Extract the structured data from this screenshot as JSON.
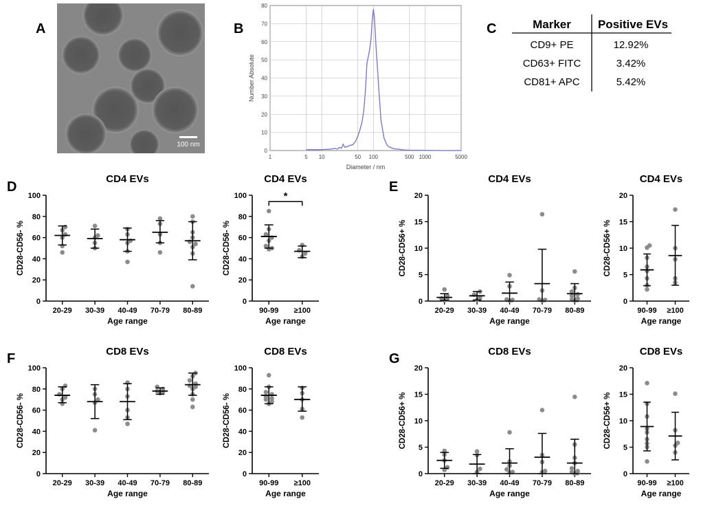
{
  "colors": {
    "axis": "#000000",
    "point": "#8c8c8c",
    "curve": "#7b7bc4",
    "grid": "#b8b8b8",
    "em_dark": "#4a4a4a",
    "em_mid": "#8a8a8a"
  },
  "panel_labels": {
    "a": "A",
    "b": "B",
    "c": "C",
    "d": "D",
    "e": "E",
    "f": "F",
    "g": "G"
  },
  "panel_a": {
    "scale_bar_label": "100 nm"
  },
  "panel_c": {
    "headers": [
      "Marker",
      "Positive EVs"
    ],
    "rows": [
      {
        "marker": "CD9+ PE",
        "value": "12.92%"
      },
      {
        "marker": "CD63+ FITC",
        "value": "3.42%"
      },
      {
        "marker": "CD81+ APC",
        "value": "5.42%"
      }
    ]
  },
  "chart_data": [
    {
      "id": "B",
      "type": "line",
      "xlabel": "Diameter / nm",
      "ylabel": "Number Absolute",
      "xscale": "log",
      "xlim": [
        1,
        5000
      ],
      "ylim": [
        0,
        80
      ],
      "x_ticks": [
        {
          "v": 1,
          "label": "1"
        },
        {
          "v": 5,
          "label": "5"
        },
        {
          "v": 10,
          "label": "10"
        },
        {
          "v": 50,
          "label": "50"
        },
        {
          "v": 100,
          "label": "100"
        },
        {
          "v": 500,
          "label": "500"
        },
        {
          "v": 1000,
          "label": "1000"
        },
        {
          "v": 5000,
          "label": "5000"
        }
      ],
      "y_ticks": [
        0,
        10,
        20,
        30,
        40,
        50,
        60,
        70,
        80
      ],
      "grid": true,
      "x": [
        5,
        10,
        15,
        18,
        20,
        22,
        24,
        26,
        28,
        30,
        35,
        40,
        45,
        50,
        55,
        60,
        65,
        70,
        75,
        80,
        85,
        90,
        95,
        100,
        105,
        110,
        115,
        120,
        130,
        140,
        160,
        180,
        200,
        250,
        300,
        400,
        500,
        1000,
        2000,
        5000
      ],
      "y": [
        0.5,
        0.5,
        0.8,
        1.2,
        0.8,
        1.8,
        1.2,
        3.5,
        1.8,
        2.0,
        2.8,
        3.2,
        5.0,
        8.0,
        11.5,
        15.5,
        22.0,
        33.0,
        48.0,
        52.0,
        56.0,
        62.0,
        72.0,
        78.0,
        73.0,
        62.0,
        53.0,
        45.0,
        30.0,
        17.0,
        7.0,
        3.5,
        2.0,
        1.0,
        0.8,
        0.3,
        0.2,
        0.1,
        0.05,
        0.0
      ]
    },
    {
      "id": "D-left",
      "type": "scatter",
      "title": "CD4 EVs",
      "xlabel": "Age range",
      "ylabel": "CD28-CD56- %",
      "ylim": [
        0,
        100
      ],
      "y_ticks": [
        0,
        20,
        40,
        60,
        80,
        100
      ],
      "categories": [
        "20-29",
        "30-39",
        "40-49",
        "70-79",
        "80-89"
      ],
      "groups": [
        {
          "points": [
            63,
            70,
            60,
            52,
            46,
            67
          ],
          "mean": 62,
          "sd_low": 53,
          "sd_high": 71
        },
        {
          "points": [
            71,
            62,
            55,
            60,
            50
          ],
          "mean": 59,
          "sd_low": 50,
          "sd_high": 68
        },
        {
          "points": [
            68,
            63,
            57,
            55,
            47,
            37
          ],
          "mean": 58,
          "sd_low": 47,
          "sd_high": 69
        },
        {
          "points": [
            78,
            73,
            63,
            55,
            46
          ],
          "mean": 65,
          "sd_low": 55,
          "sd_high": 76
        },
        {
          "points": [
            80,
            75,
            65,
            60,
            56,
            54,
            51,
            45,
            14
          ],
          "mean": 57,
          "sd_low": 39,
          "sd_high": 75
        }
      ]
    },
    {
      "id": "D-right",
      "type": "scatter",
      "title": "CD4 EVs",
      "xlabel": "Age range",
      "ylabel": "CD28-CD56- %",
      "ylim": [
        0,
        100
      ],
      "y_ticks": [
        0,
        20,
        40,
        60,
        80,
        100
      ],
      "categories": [
        "90-99",
        "≥100"
      ],
      "significance": "*",
      "groups": [
        {
          "points": [
            85,
            68,
            63,
            60,
            57,
            52,
            50,
            49
          ],
          "mean": 61,
          "sd_low": 50,
          "sd_high": 72
        },
        {
          "points": [
            53,
            48,
            45,
            42
          ],
          "mean": 47,
          "sd_low": 41,
          "sd_high": 52
        }
      ]
    },
    {
      "id": "E-left",
      "type": "scatter",
      "title": "CD4 EVs",
      "xlabel": "Age range",
      "ylabel": "CD28-CD56+ %",
      "ylim": [
        0,
        20
      ],
      "y_ticks": [
        0,
        5,
        10,
        15,
        20
      ],
      "categories": [
        "20-29",
        "30-39",
        "40-49",
        "70-79",
        "80-89"
      ],
      "groups": [
        {
          "points": [
            2.2,
            1.0,
            0.5,
            0.3,
            0.1
          ],
          "mean": 0.7,
          "sd_low": 0.1,
          "sd_high": 1.4
        },
        {
          "points": [
            1.8,
            1.2,
            0.6,
            0.2
          ],
          "mean": 1.0,
          "sd_low": 0.2,
          "sd_high": 1.8
        },
        {
          "points": [
            4.9,
            2.8,
            0.3,
            0.2,
            0.1
          ],
          "mean": 1.5,
          "sd_low": 0.0,
          "sd_high": 3.6
        },
        {
          "points": [
            16.4,
            2.0,
            0.3,
            0.2,
            0.1
          ],
          "mean": 3.3,
          "sd_low": 0.0,
          "sd_high": 9.8
        },
        {
          "points": [
            5.6,
            2.5,
            1.8,
            1.3,
            1.0,
            0.5,
            0.3,
            0.2,
            0.1
          ],
          "mean": 1.4,
          "sd_low": 0.0,
          "sd_high": 3.3
        }
      ]
    },
    {
      "id": "E-right",
      "type": "scatter",
      "title": "CD4 EVs",
      "xlabel": "Age range",
      "ylabel": "CD28-CD56+ %",
      "ylim": [
        0,
        20
      ],
      "y_ticks": [
        0,
        5,
        10,
        15,
        20
      ],
      "categories": [
        "90-99",
        "≥100"
      ],
      "groups": [
        {
          "points": [
            10.5,
            10.1,
            8.2,
            6.5,
            5.7,
            4.3,
            3.0,
            2.2
          ],
          "mean": 5.9,
          "sd_low": 2.9,
          "sd_high": 8.9
        },
        {
          "points": [
            17.3,
            10.0,
            7.9,
            4.3,
            3.5
          ],
          "mean": 8.6,
          "sd_low": 3.0,
          "sd_high": 14.3
        }
      ]
    },
    {
      "id": "F-left",
      "type": "scatter",
      "title": "CD8 EVs",
      "xlabel": "Age range",
      "ylabel": "CD28-CD56- %",
      "ylim": [
        0,
        100
      ],
      "y_ticks": [
        0,
        20,
        40,
        60,
        80,
        100
      ],
      "categories": [
        "20-29",
        "30-39",
        "40-49",
        "70-79",
        "80-89"
      ],
      "groups": [
        {
          "points": [
            83,
            80,
            75,
            72,
            70,
            66
          ],
          "mean": 74,
          "sd_low": 67,
          "sd_high": 82
        },
        {
          "points": [
            80,
            75,
            70,
            67,
            41
          ],
          "mean": 68,
          "sd_low": 52,
          "sd_high": 84
        },
        {
          "points": [
            86,
            80,
            73,
            60,
            53,
            47
          ],
          "mean": 68,
          "sd_low": 51,
          "sd_high": 85
        },
        {
          "points": [
            82,
            80,
            78,
            77,
            76
          ],
          "mean": 78,
          "sd_low": 75,
          "sd_high": 81
        },
        {
          "points": [
            95,
            92,
            88,
            85,
            83,
            82,
            80,
            75,
            70,
            63
          ],
          "mean": 84,
          "sd_low": 74,
          "sd_high": 95
        }
      ]
    },
    {
      "id": "F-right",
      "type": "scatter",
      "title": "CD8 EVs",
      "xlabel": "Age range",
      "ylabel": "CD28-CD56- %",
      "ylim": [
        0,
        100
      ],
      "y_ticks": [
        0,
        20,
        40,
        60,
        80,
        100
      ],
      "categories": [
        "90-99",
        "≥100"
      ],
      "groups": [
        {
          "points": [
            93,
            82,
            77,
            75,
            73,
            71,
            70,
            68,
            66
          ],
          "mean": 74,
          "sd_low": 66,
          "sd_high": 82
        },
        {
          "points": [
            81,
            76,
            70,
            61,
            53
          ],
          "mean": 70,
          "sd_low": 59,
          "sd_high": 82
        }
      ]
    },
    {
      "id": "G-left",
      "type": "scatter",
      "title": "CD8 EVs",
      "xlabel": "Age range",
      "ylabel": "CD28-CD56+ %",
      "ylim": [
        0,
        20
      ],
      "y_ticks": [
        0,
        5,
        10,
        15,
        20
      ],
      "categories": [
        "20-29",
        "30-39",
        "40-49",
        "70-79",
        "80-89"
      ],
      "groups": [
        {
          "points": [
            4.3,
            3.6,
            2.5,
            1.2,
            0.7
          ],
          "mean": 2.5,
          "sd_low": 1.0,
          "sd_high": 4.0
        },
        {
          "points": [
            4.2,
            3.5,
            0.9,
            0.3
          ],
          "mean": 1.8,
          "sd_low": 0.0,
          "sd_high": 3.6
        },
        {
          "points": [
            7.8,
            2.3,
            1.5,
            0.8,
            0.3,
            0.2
          ],
          "mean": 2.0,
          "sd_low": 0.0,
          "sd_high": 4.7
        },
        {
          "points": [
            12.0,
            3.5,
            2.2,
            0.5,
            0.3
          ],
          "mean": 3.1,
          "sd_low": 0.0,
          "sd_high": 7.6
        },
        {
          "points": [
            14.5,
            5.5,
            3.0,
            2.0,
            1.0,
            0.5,
            0.3,
            0.1,
            0.0
          ],
          "mean": 2.0,
          "sd_low": 0.0,
          "sd_high": 6.5
        }
      ]
    },
    {
      "id": "G-right",
      "type": "scatter",
      "title": "CD8 EVs",
      "xlabel": "Age range",
      "ylabel": "CD28-CD56+ %",
      "ylim": [
        0,
        20
      ],
      "y_ticks": [
        0,
        5,
        10,
        15,
        20
      ],
      "categories": [
        "90-99",
        "≥100"
      ],
      "groups": [
        {
          "points": [
            17.1,
            13.2,
            10.8,
            8.5,
            7.8,
            6.5,
            5.7,
            5.0,
            2.3
          ],
          "mean": 8.9,
          "sd_low": 4.3,
          "sd_high": 13.5
        },
        {
          "points": [
            15.1,
            8.2,
            5.8,
            5.3,
            4.0
          ],
          "mean": 7.1,
          "sd_low": 2.6,
          "sd_high": 11.6
        }
      ]
    }
  ]
}
